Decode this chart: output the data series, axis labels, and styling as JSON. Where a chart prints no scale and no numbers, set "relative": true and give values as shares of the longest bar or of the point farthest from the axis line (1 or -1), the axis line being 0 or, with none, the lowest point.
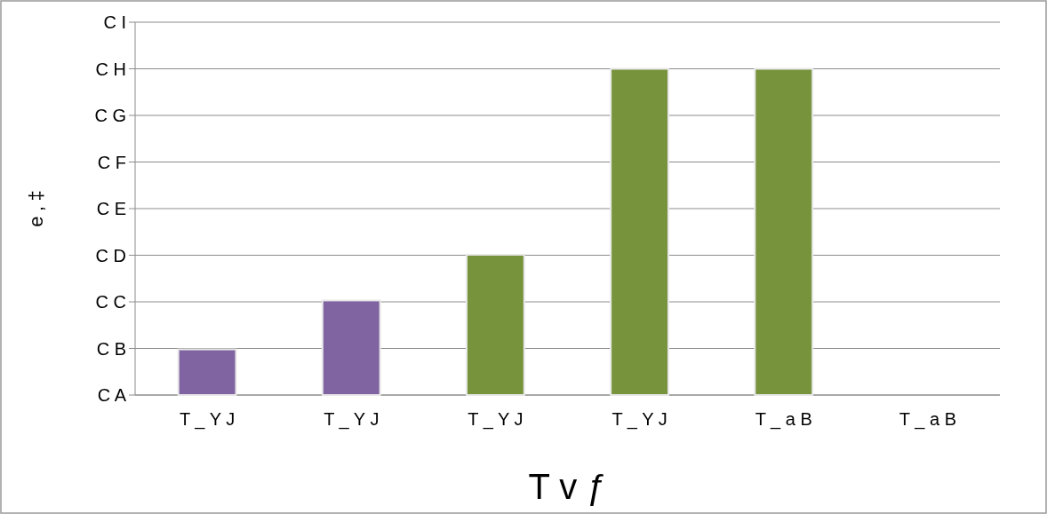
{
  "chart_data": {
    "type": "bar",
    "xlabel": "T v ƒ",
    "ylabel": "e ‚ ‡",
    "relative": true,
    "categories": [
      "T _ Y J",
      "T _ Y J",
      "T _ Y J",
      "T _ Y J",
      "T _ a B",
      "T _ a B"
    ],
    "values": [
      0.14,
      0.29,
      0.43,
      1,
      1,
      0
    ],
    "colors": [
      "#8064a2",
      "#8064a2",
      "#77933c",
      "#77933c",
      "#77933c",
      "#77933c"
    ],
    "annotations": [
      "C A",
      "C B",
      "C C",
      "C D",
      "C E",
      "C F",
      "C G",
      "C H",
      "C I"
    ],
    "grid": "y"
  }
}
